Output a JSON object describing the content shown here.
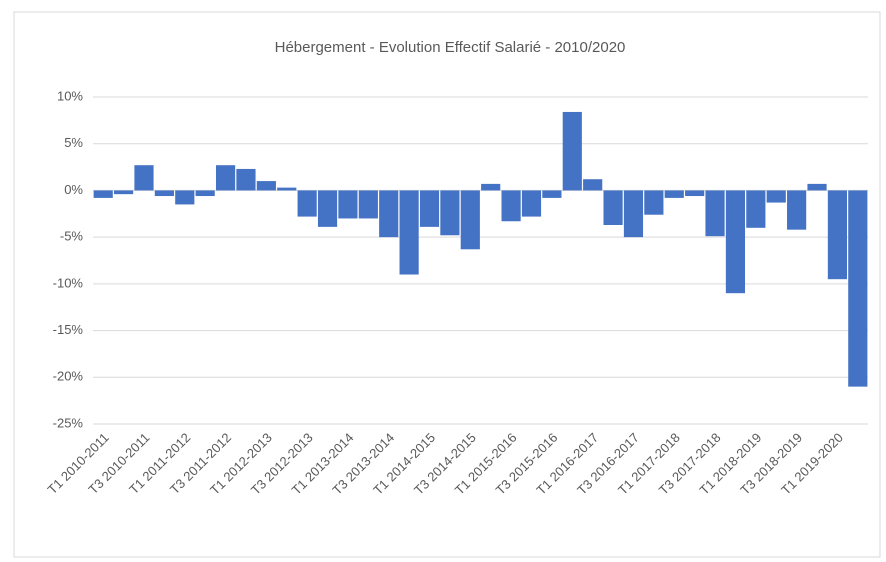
{
  "chart_data": {
    "type": "bar",
    "title": "Hébergement  - Evolution Effectif Salarié - 2010/2020",
    "categories": [
      "T1 2010-2011",
      null,
      "T3 2010-2011",
      null,
      "T1 2011-2012",
      null,
      "T3 2011-2012",
      null,
      "T1 2012-2013",
      null,
      "T3 2012-2013",
      null,
      "T1 2013-2014",
      null,
      "T3 2013-2014",
      null,
      "T1 2014-2015",
      null,
      "T3 2014-2015",
      null,
      "T1 2015-2016",
      null,
      "T3 2015-2016",
      null,
      "T1 2016-2017",
      null,
      "T3 2016-2017",
      null,
      "T1 2017-2018",
      null,
      "T3 2017-2018",
      null,
      "T1 2018-2019",
      null,
      "T3 2018-2019",
      null,
      "T1 2019-2020",
      null
    ],
    "values": [
      -0.8,
      -0.4,
      2.7,
      -0.6,
      -1.5,
      -0.6,
      2.7,
      2.3,
      1.0,
      0.3,
      -2.8,
      -3.9,
      -3.0,
      -3.0,
      -5.0,
      -9.0,
      -3.9,
      -4.8,
      -6.3,
      0.7,
      -3.3,
      -2.8,
      -0.8,
      8.4,
      1.2,
      -3.7,
      -5.0,
      -2.6,
      -0.8,
      -0.6,
      -4.9,
      -11.0,
      -4.0,
      -1.3,
      -4.2,
      0.7,
      -9.5,
      -21.0
    ],
    "color": "#4472c4",
    "ylim": [
      -25,
      10
    ],
    "yticks": [
      {
        "value": -25,
        "label": "-25%"
      },
      {
        "value": -20,
        "label": "-20%"
      },
      {
        "value": -15,
        "label": "-15%"
      },
      {
        "value": -10,
        "label": "-10%"
      },
      {
        "value": -5,
        "label": "-5%"
      },
      {
        "value": 0,
        "label": "0%"
      },
      {
        "value": 5,
        "label": "5%"
      },
      {
        "value": 10,
        "label": "10%"
      }
    ],
    "grid": true
  }
}
